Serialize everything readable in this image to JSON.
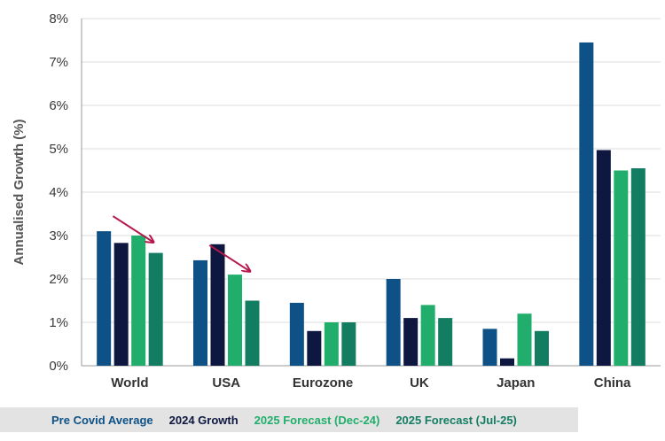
{
  "chart_data": {
    "type": "bar",
    "title": "",
    "ylabel": "Annualised Growth (%)",
    "xlabel": "",
    "ylim": [
      0,
      8
    ],
    "yticks": [
      "0%",
      "1%",
      "2%",
      "3%",
      "4%",
      "5%",
      "6%",
      "7%",
      "8%"
    ],
    "grid": true,
    "legend_position": "bottom",
    "categories": [
      "World",
      "USA",
      "Eurozone",
      "UK",
      "Japan",
      "China"
    ],
    "series": [
      {
        "name": "Pre Covid Average",
        "color": "#0d5186",
        "values": [
          3.1,
          2.43,
          1.45,
          2.0,
          0.85,
          7.45
        ]
      },
      {
        "name": "2024 Growth",
        "color": "#0d1740",
        "values": [
          2.83,
          2.8,
          0.8,
          1.1,
          0.17,
          4.97
        ]
      },
      {
        "name": "2025 Forecast (Dec-24)",
        "color": "#21ae6c",
        "values": [
          3.0,
          2.1,
          1.0,
          1.4,
          1.2,
          4.5
        ]
      },
      {
        "name": "2025 Forecast (Jul-25)",
        "color": "#137d62",
        "values": [
          2.6,
          1.5,
          1.0,
          1.1,
          0.8,
          4.55
        ]
      }
    ],
    "annotations": [
      {
        "type": "arrow",
        "category": "World",
        "color": "#b5184a",
        "meaning": "downgrade"
      },
      {
        "type": "arrow",
        "category": "USA",
        "color": "#b5184a",
        "meaning": "downgrade"
      }
    ]
  }
}
